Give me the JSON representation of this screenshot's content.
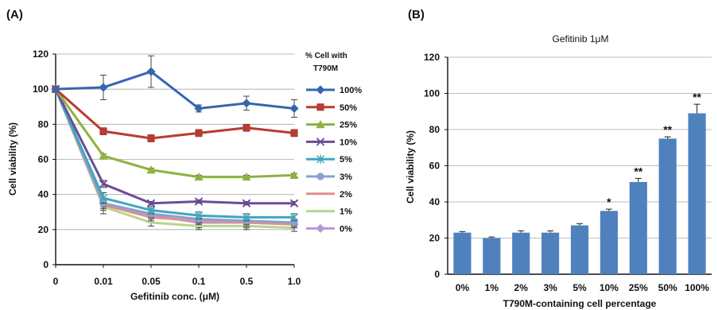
{
  "chart_data": [
    {
      "panel_label": "(A)",
      "type": "line",
      "x_categories": [
        "0",
        "0.01",
        "0.05",
        "0.1",
        "0.5",
        "1.0"
      ],
      "xlabel": "Gefitinib conc. (μM)",
      "ylabel": "Cell viability (%)",
      "ylim": [
        0,
        120
      ],
      "y_ticks": [
        "0",
        "20",
        "40",
        "60",
        "80",
        "100",
        "120"
      ],
      "grid": true,
      "legend_title_lines": [
        "% Cell with",
        "T790M"
      ],
      "legend_position": "right",
      "series": [
        {
          "name": "100%",
          "color": "#3567b0",
          "marker": "diamond",
          "values": [
            100,
            101,
            110,
            89,
            92,
            89
          ],
          "errors": [
            0,
            7,
            9,
            2,
            4,
            5
          ]
        },
        {
          "name": "50%",
          "color": "#b83b33",
          "marker": "square",
          "values": [
            100,
            76,
            72,
            75,
            78,
            75
          ],
          "errors": [
            0,
            2,
            2,
            2,
            2,
            2
          ]
        },
        {
          "name": "25%",
          "color": "#8db23e",
          "marker": "triangle",
          "values": [
            100,
            62,
            54,
            50,
            50,
            51
          ],
          "errors": [
            0,
            1,
            1,
            1,
            1,
            1
          ]
        },
        {
          "name": "10%",
          "color": "#6b4c97",
          "marker": "x",
          "values": [
            100,
            46,
            35,
            36,
            35,
            35
          ],
          "errors": [
            0,
            2,
            1,
            1,
            1,
            1
          ]
        },
        {
          "name": "5%",
          "color": "#3fa7bf",
          "marker": "star",
          "values": [
            100,
            38,
            31,
            28,
            27,
            27
          ],
          "errors": [
            0,
            3,
            2,
            2,
            2,
            2
          ]
        },
        {
          "name": "3%",
          "color": "#8aa0d0",
          "marker": "circle",
          "values": [
            100,
            35,
            29,
            26,
            25,
            24
          ],
          "errors": [
            0,
            2,
            2,
            2,
            2,
            2
          ]
        },
        {
          "name": "2%",
          "color": "#e0908c",
          "marker": "none",
          "values": [
            100,
            34,
            27,
            25,
            24,
            23
          ],
          "errors": [
            0,
            2,
            2,
            2,
            2,
            2
          ]
        },
        {
          "name": "1%",
          "color": "#b9d48e",
          "marker": "none",
          "values": [
            100,
            33,
            24,
            22,
            22,
            21
          ],
          "errors": [
            0,
            2,
            2,
            2,
            2,
            2
          ]
        },
        {
          "name": "0%",
          "color": "#b39ad2",
          "marker": "diamond",
          "values": [
            100,
            35,
            28,
            24,
            24,
            23
          ],
          "errors": [
            0,
            6,
            4,
            3,
            3,
            2
          ]
        }
      ]
    },
    {
      "panel_label": "(B)",
      "type": "bar",
      "title": "Gefitinib 1μM",
      "categories": [
        "0%",
        "1%",
        "2%",
        "3%",
        "5%",
        "10%",
        "25%",
        "50%",
        "100%"
      ],
      "values": [
        23,
        20,
        23,
        23,
        27,
        35,
        51,
        75,
        89
      ],
      "errors": [
        0.6,
        0.6,
        1,
        1,
        1,
        1,
        2,
        1,
        5
      ],
      "significance": [
        "",
        "",
        "",
        "",
        "",
        "*",
        "**",
        "**",
        "**"
      ],
      "color": "#4f81bd",
      "xlabel": "T790M-containing cell percentage",
      "ylabel": "Cell viability (%)",
      "ylim": [
        0,
        120
      ],
      "y_ticks": [
        "0",
        "20",
        "40",
        "60",
        "80",
        "100",
        "120"
      ],
      "grid": true
    }
  ]
}
